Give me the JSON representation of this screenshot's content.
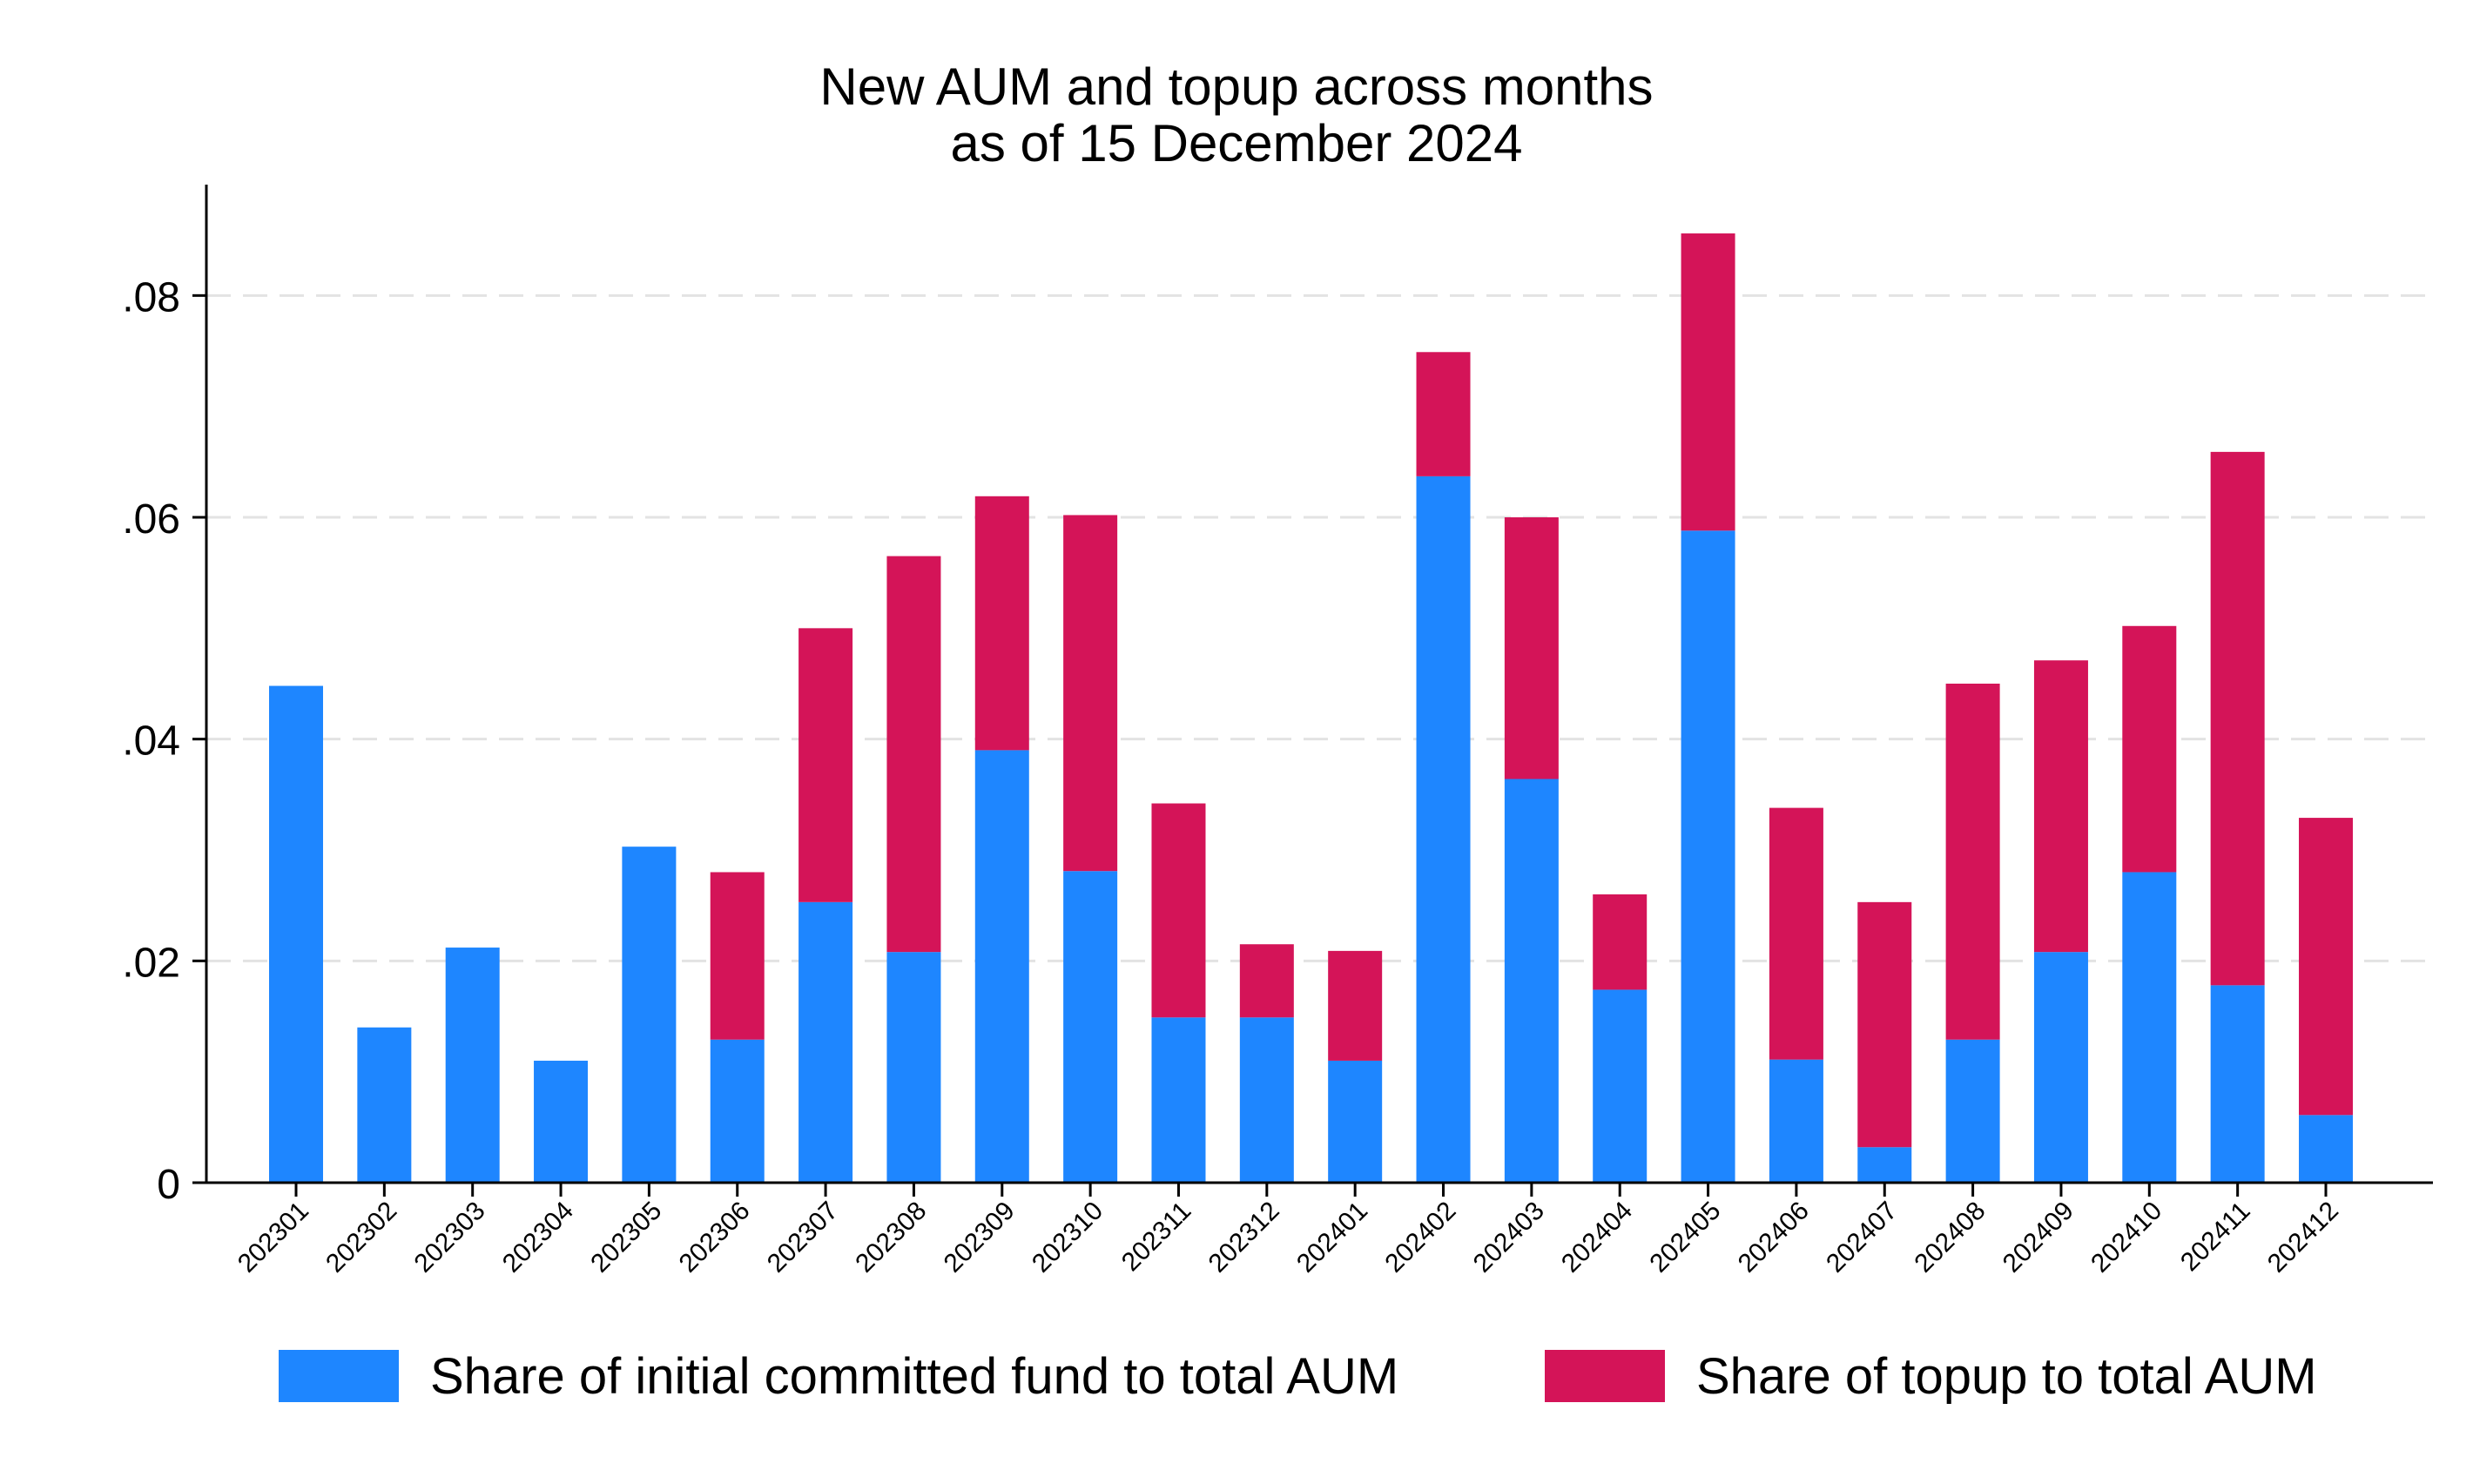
{
  "chart_data": {
    "type": "bar",
    "stacked": true,
    "title": "New AUM and topup across months",
    "subtitle": "as of 15 December 2024",
    "xlabel": "",
    "ylabel": "",
    "ylim": [
      0,
      0.09
    ],
    "yticks": [
      0,
      0.02,
      0.04,
      0.06,
      0.08
    ],
    "ytick_labels": [
      "0",
      ".02",
      ".04",
      ".06",
      ".08"
    ],
    "grid": true,
    "legend_position": "bottom",
    "categories": [
      "202301",
      "202302",
      "202303",
      "202304",
      "202305",
      "202306",
      "202307",
      "202308",
      "202309",
      "202310",
      "202311",
      "202312",
      "202401",
      "202402",
      "202403",
      "202404",
      "202405",
      "202406",
      "202407",
      "202408",
      "202409",
      "202410",
      "202411",
      "202412"
    ],
    "series": [
      {
        "name": "Share of initial committed fund to total AUM",
        "color": "#1e86ff",
        "values": [
          0.0448,
          0.014,
          0.0212,
          0.011,
          0.0303,
          0.0129,
          0.0253,
          0.0208,
          0.039,
          0.0281,
          0.0149,
          0.0149,
          0.011,
          0.0637,
          0.0364,
          0.0174,
          0.0588,
          0.0111,
          0.0032,
          0.0129,
          0.0208,
          0.028,
          0.0178,
          0.0061
        ]
      },
      {
        "name": "Share of topup to total AUM",
        "color": "#d41458",
        "values": [
          0,
          0,
          0,
          0,
          0,
          0.0151,
          0.0247,
          0.0357,
          0.0229,
          0.0321,
          0.0193,
          0.0066,
          0.0099,
          0.0112,
          0.0236,
          0.0086,
          0.0268,
          0.0227,
          0.0221,
          0.0321,
          0.0263,
          0.0222,
          0.0481,
          0.0268
        ]
      }
    ]
  }
}
